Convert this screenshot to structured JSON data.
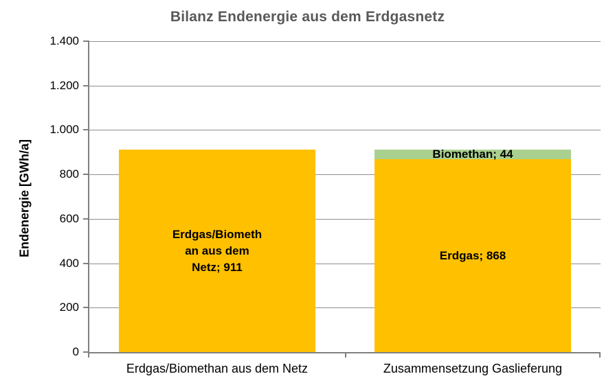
{
  "chart_title": "Bilanz Endenergie aus dem Erdgasnetz",
  "colors": {
    "bar_yellow": "#FFC000",
    "bar_green": "#A9D08E",
    "gridline": "#8e8e8e",
    "axis": "#808080",
    "title_text": "#595959",
    "label_text": "#000000"
  },
  "chart_data": {
    "type": "bar",
    "stacked": true,
    "title": "Bilanz Endenergie aus dem Erdgasnetz",
    "xlabel": "",
    "ylabel": "Endenergie [GWh/a]",
    "ylim": [
      0,
      1400
    ],
    "yticks": [
      0,
      200,
      400,
      600,
      800,
      1000,
      1200,
      1400
    ],
    "ytick_labels": [
      "0",
      "200",
      "400",
      "600",
      "800",
      "1.000",
      "1.200",
      "1.400"
    ],
    "grid": true,
    "legend_position": "none",
    "number_format": "german-thousands-dot",
    "categories": [
      "Erdgas/Biomethan aus dem Netz",
      "Zusammensetzung Gaslieferung"
    ],
    "bars": [
      {
        "category": "Erdgas/Biomethan aus dem Netz",
        "total": 911,
        "segments": [
          {
            "name": "Erdgas/Biomethan aus dem Netz",
            "value": 911,
            "color": "#FFC000",
            "label": "Erdgas/Biomethan aus dem Netz; 911",
            "label_lines": [
              "Erdgas/Biometh",
              "an aus dem",
              "Netz; 911"
            ]
          }
        ]
      },
      {
        "category": "Zusammensetzung Gaslieferung",
        "total": 912,
        "segments": [
          {
            "name": "Erdgas",
            "value": 868,
            "color": "#FFC000",
            "label": "Erdgas; 868",
            "label_lines": [
              "Erdgas; 868"
            ]
          },
          {
            "name": "Biomethan",
            "value": 44,
            "color": "#A9D08E",
            "label": "Biomethan; 44",
            "label_lines": [
              "Biomethan; 44"
            ]
          }
        ]
      }
    ]
  }
}
